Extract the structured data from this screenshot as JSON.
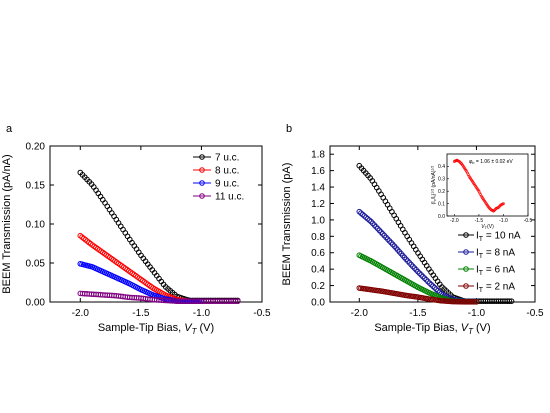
{
  "chart_data": [
    {
      "panel_label": "a",
      "type": "scatter",
      "xlabel_main": "Sample-Tip Bias, ",
      "xlabel_var": "V",
      "xlabel_sub": "T",
      "xlabel_unit": " (V)",
      "ylabel": "BEEM Transmission (pA/nA)",
      "xlim": [
        -2.25,
        -0.5
      ],
      "ylim": [
        0,
        0.2
      ],
      "x_reversed": true,
      "xticks": [
        -2.0,
        -1.5,
        -1.0,
        -0.5
      ],
      "xtick_labels": [
        "-2.0",
        "-1.5",
        "-1.0",
        "-0.5"
      ],
      "yticks": [
        0.0,
        0.05,
        0.1,
        0.15,
        0.2
      ],
      "ytick_labels": [
        "0.00",
        "0.05",
        "0.10",
        "0.15",
        "0.20"
      ],
      "legend_position": "top-right",
      "series": [
        {
          "name": "7  u.c.",
          "color": "#000000",
          "x": [
            -2.0,
            -1.9,
            -1.8,
            -1.7,
            -1.6,
            -1.5,
            -1.4,
            -1.3,
            -1.2,
            -1.1,
            -1.0,
            -0.9,
            -0.8,
            -0.7
          ],
          "y": [
            0.166,
            0.15,
            0.128,
            0.105,
            0.082,
            0.06,
            0.04,
            0.02,
            0.007,
            0.002,
            0.002,
            0.002,
            0.002,
            0.002
          ]
        },
        {
          "name": "8  u.c.",
          "color": "#ff0000",
          "x": [
            -2.0,
            -1.9,
            -1.8,
            -1.7,
            -1.6,
            -1.5,
            -1.4,
            -1.3,
            -1.2,
            -1.1,
            -1.0
          ],
          "y": [
            0.085,
            0.073,
            0.062,
            0.051,
            0.04,
            0.029,
            0.018,
            0.009,
            0.003,
            0.001,
            0.001
          ]
        },
        {
          "name": "9  u.c.",
          "color": "#0000ff",
          "x": [
            -2.0,
            -1.9,
            -1.8,
            -1.7,
            -1.6,
            -1.5,
            -1.4,
            -1.3,
            -1.2,
            -1.1,
            -1.0
          ],
          "y": [
            0.049,
            0.045,
            0.038,
            0.031,
            0.024,
            0.016,
            0.009,
            0.004,
            0.001,
            0.001,
            0.001
          ]
        },
        {
          "name": "11 u.c.",
          "color": "#800080",
          "x": [
            -2.0,
            -1.9,
            -1.8,
            -1.7,
            -1.6,
            -1.5,
            -1.4,
            -1.3,
            -1.2,
            -1.1,
            -1.0,
            -0.9,
            -0.8,
            -0.7
          ],
          "y": [
            0.011,
            0.01,
            0.009,
            0.008,
            0.006,
            0.005,
            0.003,
            0.002,
            0.001,
            0.001,
            0.001,
            0.001,
            0.001,
            0.001
          ]
        }
      ]
    },
    {
      "panel_label": "b",
      "type": "scatter",
      "xlabel_main": "Sample-Tip Bias, ",
      "xlabel_var": "V",
      "xlabel_sub": "T",
      "xlabel_unit": " (V)",
      "ylabel": "BEEM Transmission (pA)",
      "xlim": [
        -2.25,
        -0.5
      ],
      "ylim": [
        0,
        1.9
      ],
      "x_reversed": true,
      "xticks": [
        -2.0,
        -1.5,
        -1.0,
        -0.5
      ],
      "xtick_labels": [
        "-2.0",
        "-1.5",
        "-1.0",
        "-0.5"
      ],
      "yticks": [
        0.0,
        0.2,
        0.4,
        0.6,
        0.8,
        1.0,
        1.2,
        1.4,
        1.6,
        1.8
      ],
      "ytick_labels": [
        "0.0",
        "0.2",
        "0.4",
        "0.6",
        "0.8",
        "1.0",
        "1.2",
        "1.4",
        "1.6",
        "1.8"
      ],
      "legend_position": "lower-right",
      "legend_prefix": "I",
      "legend_sub": "T",
      "series": [
        {
          "name": " = 10 nA",
          "color": "#000000",
          "x": [
            -2.0,
            -1.9,
            -1.8,
            -1.7,
            -1.6,
            -1.5,
            -1.4,
            -1.3,
            -1.2,
            -1.1,
            -1.0,
            -0.9,
            -0.8,
            -0.7
          ],
          "y": [
            1.66,
            1.5,
            1.28,
            1.05,
            0.82,
            0.6,
            0.39,
            0.19,
            0.06,
            0.01,
            0.01,
            0.01,
            0.01,
            0.01
          ]
        },
        {
          "name": " = 8 nA",
          "color": "#1a1a99",
          "x": [
            -2.0,
            -1.9,
            -1.8,
            -1.7,
            -1.6,
            -1.5,
            -1.4,
            -1.3,
            -1.2,
            -1.1,
            -1.0
          ],
          "y": [
            1.1,
            0.98,
            0.83,
            0.68,
            0.52,
            0.37,
            0.23,
            0.1,
            0.03,
            0.01,
            0.01
          ]
        },
        {
          "name": " = 6 nA",
          "color": "#008000",
          "x": [
            -2.0,
            -1.9,
            -1.8,
            -1.7,
            -1.6,
            -1.5,
            -1.4,
            -1.3,
            -1.2,
            -1.1,
            -1.0
          ],
          "y": [
            0.57,
            0.5,
            0.42,
            0.34,
            0.26,
            0.18,
            0.11,
            0.05,
            0.01,
            0.005,
            0.005
          ]
        },
        {
          "name": " = 2 nA",
          "color": "#800000",
          "x": [
            -2.0,
            -1.9,
            -1.8,
            -1.7,
            -1.6,
            -1.5,
            -1.4,
            -1.3,
            -1.2,
            -1.1,
            -1.0
          ],
          "y": [
            0.17,
            0.15,
            0.13,
            0.105,
            0.08,
            0.06,
            0.035,
            0.015,
            0.005,
            0.002,
            0.002
          ]
        }
      ],
      "inset": {
        "type": "scatter",
        "annotation_phi": "φ",
        "annotation_sub": "b",
        "annotation_value": " = 1.06 ± 0.02 eV",
        "ylabel": "(I_c/I_t)^1/2 (pA/nA)^1/2",
        "ylabel_text": "(I",
        "ylabel_c": "c",
        "ylabel_slash": "/I",
        "ylabel_t": "t",
        "ylabel_end": ")",
        "ylabel_exp": "1/2",
        "ylabel_unit": " (pA/nA)",
        "ylabel_unit_exp": "1/2",
        "xlabel_var": "V",
        "xlabel_sub": "T",
        "xlabel_unit": "(V)",
        "xlim": [
          -2.15,
          -0.5
        ],
        "ylim": [
          0,
          0.5
        ],
        "x_reversed": true,
        "xticks": [
          -2.0,
          -1.5,
          -1.0,
          -0.5
        ],
        "xtick_labels": [
          "-2.0",
          "-1.5",
          "-1.0",
          "-0.5"
        ],
        "yticks": [
          0.0,
          0.1,
          0.2,
          0.3,
          0.4
        ],
        "ytick_labels": [
          "0.0",
          "0.1",
          "0.2",
          "0.3",
          "0.4"
        ],
        "color": "#ff0000",
        "x": [
          -2.0,
          -1.95,
          -1.9,
          -1.85,
          -1.8,
          -1.75,
          -1.7,
          -1.65,
          -1.6,
          -1.55,
          -1.5,
          -1.45,
          -1.4,
          -1.35,
          -1.3,
          -1.25,
          -1.2,
          -1.15,
          -1.1,
          -1.05,
          -1.0
        ],
        "y": [
          0.44,
          0.45,
          0.44,
          0.42,
          0.39,
          0.36,
          0.32,
          0.29,
          0.26,
          0.23,
          0.2,
          0.16,
          0.13,
          0.1,
          0.07,
          0.05,
          0.04,
          0.06,
          0.07,
          0.09,
          0.1
        ]
      }
    }
  ]
}
